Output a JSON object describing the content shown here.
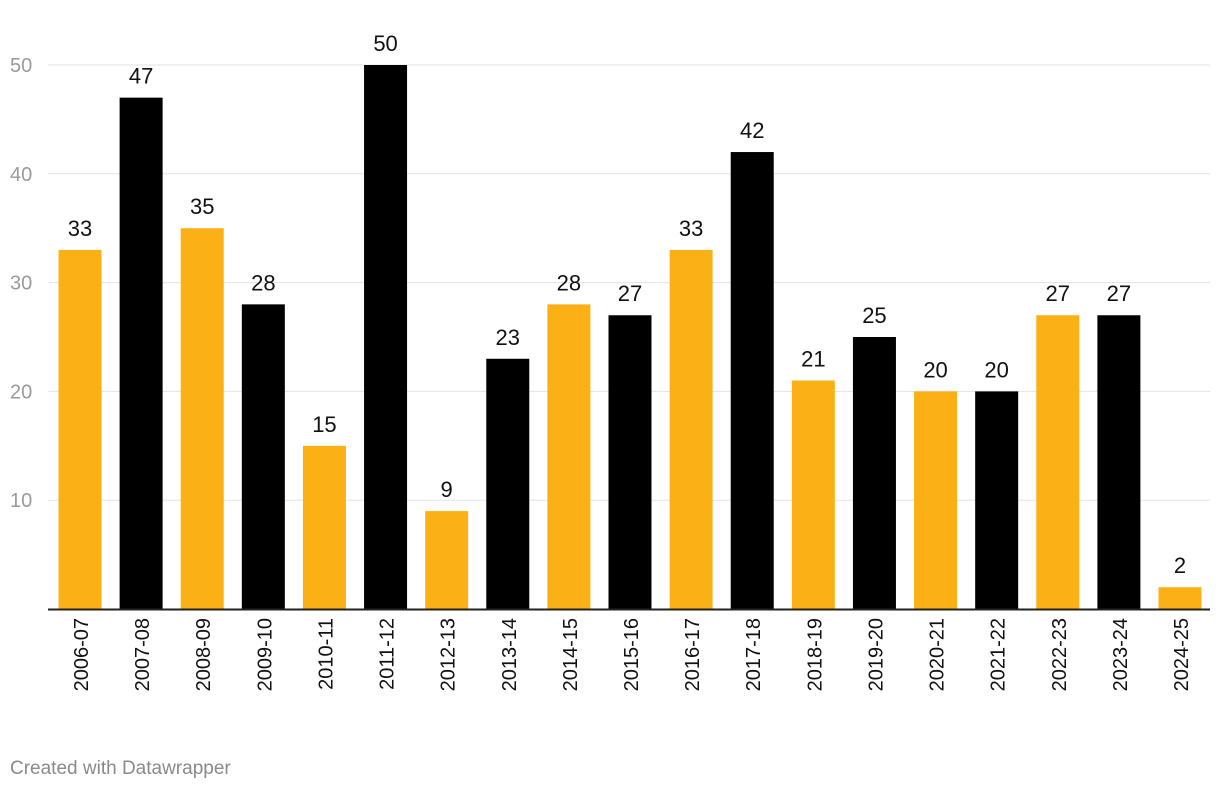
{
  "credit": "Created with Datawrapper",
  "colors": {
    "highlight": "#fbb115",
    "primary": "#000000",
    "grid": "#e3e3e3",
    "baseline": "#222222"
  },
  "chart_data": {
    "type": "bar",
    "title": "",
    "xlabel": "",
    "ylabel": "",
    "categories": [
      "2006-07",
      "2007-08",
      "2008-09",
      "2009-10",
      "2010-11",
      "2011-12",
      "2012-13",
      "2013-14",
      "2014-15",
      "2015-16",
      "2016-17",
      "2017-18",
      "2018-19",
      "2019-20",
      "2020-21",
      "2021-22",
      "2022-23",
      "2023-24",
      "2024-25"
    ],
    "values": [
      33,
      47,
      35,
      28,
      15,
      50,
      9,
      23,
      28,
      27,
      33,
      42,
      21,
      25,
      20,
      20,
      27,
      27,
      2
    ],
    "bar_colors": [
      "#fbb115",
      "#000000",
      "#fbb115",
      "#000000",
      "#fbb115",
      "#000000",
      "#fbb115",
      "#000000",
      "#fbb115",
      "#000000",
      "#fbb115",
      "#000000",
      "#fbb115",
      "#000000",
      "#fbb115",
      "#000000",
      "#fbb115",
      "#000000",
      "#fbb115"
    ],
    "ylim": [
      0,
      50
    ],
    "yticks": [
      10,
      20,
      30,
      40,
      50
    ],
    "grid": true,
    "data_labels": true
  }
}
